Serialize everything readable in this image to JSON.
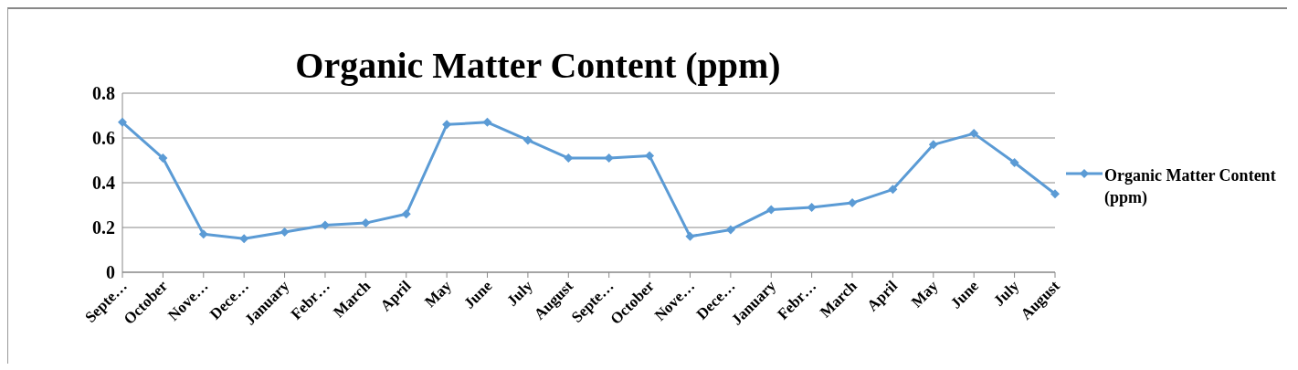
{
  "chart_data": {
    "type": "line",
    "title": "Organic Matter Content (ppm)",
    "categories": [
      "Septe…",
      "October",
      "Nove…",
      "Dece…",
      "January",
      "Febr…",
      "March",
      "April",
      "May",
      "June",
      "July",
      "August",
      "Septe…",
      "October",
      "Nove…",
      "Dece…",
      "January",
      "Febr…",
      "March",
      "April",
      "May",
      "June",
      "July",
      "August"
    ],
    "series": [
      {
        "name": "Organic Matter Content (ppm)",
        "color": "#5b9bd5",
        "values": [
          0.67,
          0.51,
          0.17,
          0.15,
          0.18,
          0.21,
          0.22,
          0.26,
          0.66,
          0.67,
          0.59,
          0.51,
          0.51,
          0.52,
          0.16,
          0.19,
          0.28,
          0.29,
          0.31,
          0.37,
          0.57,
          0.62,
          0.49,
          0.35
        ]
      }
    ],
    "ylim": [
      0,
      0.8
    ],
    "yticks": [
      0,
      0.2,
      0.4,
      0.6,
      0.8
    ],
    "grid": "y",
    "legend": "right",
    "marker": "diamond",
    "line_style": "solid"
  }
}
